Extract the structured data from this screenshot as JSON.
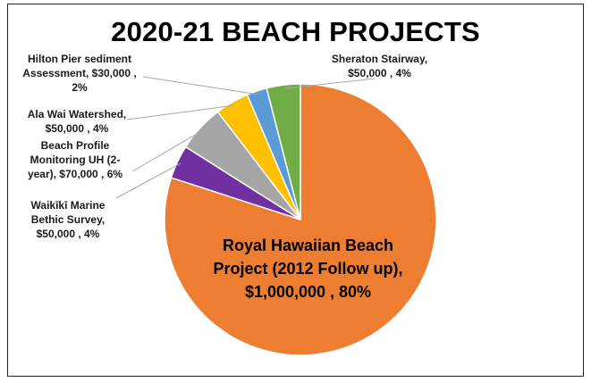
{
  "chart_data": {
    "type": "pie",
    "title": "2020-21 BEACH PROJECTS",
    "slices": [
      {
        "name": "Royal Hawaiian Beach Project (2012 Follow up)",
        "value": 1000000,
        "percent": 80,
        "color": "#ED7D31",
        "label": "Royal Hawaiian Beach\nProject (2012 Follow up),\n$1,000,000 , 80%"
      },
      {
        "name": "Waikīkī Marine Bethic Survey",
        "value": 50000,
        "percent": 4,
        "color": "#7030A0",
        "label": "Waikīkī Marine\nBethic Survey,\n$50,000 , 4%"
      },
      {
        "name": "Beach Profile Monitoring UH (2-year)",
        "value": 70000,
        "percent": 6,
        "color": "#A5A5A5",
        "label": "Beach Profile\nMonitoring UH (2-\nyear), $70,000 , 6%"
      },
      {
        "name": "Ala Wai Watershed",
        "value": 50000,
        "percent": 4,
        "color": "#FFC000",
        "label": "Ala Wai Watershed,\n$50,000 , 4%"
      },
      {
        "name": "Hilton Pier sediment Assessment",
        "value": 30000,
        "percent": 2,
        "color": "#5B9BD5",
        "label": "Hilton Pier sediment\nAssessment, $30,000 ,\n2%"
      },
      {
        "name": "Sheraton Stairway",
        "value": 50000,
        "percent": 4,
        "color": "#70AD47",
        "label": "Sheraton Stairway,\n$50,000 , 4%"
      }
    ]
  }
}
